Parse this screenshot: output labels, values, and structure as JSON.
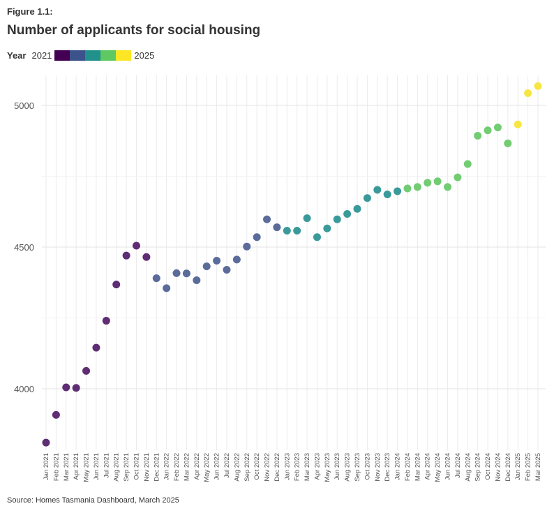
{
  "figure_label": "Figure 1.1:",
  "title": "Number of applicants for social housing",
  "legend": {
    "title": "Year",
    "start_label": "2021",
    "end_label": "2025",
    "colors": [
      "#440154",
      "#3b528b",
      "#21918c",
      "#5ec962",
      "#fde725"
    ]
  },
  "source": "Source: Homes Tasmania Dashboard, March 2025",
  "chart_data": {
    "type": "scatter",
    "xlabel": "",
    "ylabel": "",
    "ylim": [
      3800,
      5080
    ],
    "yticks": [
      4000,
      4500,
      5000
    ],
    "grid": true,
    "categories": [
      "Jan 2021",
      "Feb 2021",
      "Mar 2021",
      "Apr 2021",
      "May 2021",
      "Jun 2021",
      "Jul 2021",
      "Aug 2021",
      "Sep 2021",
      "Oct 2021",
      "Nov 2021",
      "Dec 2021",
      "Jan 2022",
      "Feb 2022",
      "Mar 2022",
      "Apr 2022",
      "May 2022",
      "Jun 2022",
      "Jul 2022",
      "Aug 2022",
      "Sep 2022",
      "Oct 2022",
      "Nov 2022",
      "Dec 2022",
      "Jan 2023",
      "Feb 2023",
      "Mar 2023",
      "Apr 2023",
      "May 2023",
      "Jun 2023",
      "Aug 2023",
      "Sep 2023",
      "Oct 2023",
      "Nov 2023",
      "Dec 2023",
      "Jan 2024",
      "Feb 2024",
      "Mar 2024",
      "Apr 2024",
      "May 2024",
      "Jun 2024",
      "Jul 2024",
      "Aug 2024",
      "Sep 2024",
      "Oct 2024",
      "Nov 2024",
      "Dec 2024",
      "Jan 2025",
      "Feb 2025",
      "Mar 2025"
    ],
    "values": [
      3810,
      3908,
      4005,
      4003,
      4063,
      4145,
      4240,
      4368,
      4470,
      4505,
      4465,
      4390,
      4355,
      4408,
      4407,
      4383,
      4432,
      4452,
      4420,
      4456,
      4502,
      4535,
      4598,
      4570,
      4558,
      4558,
      4602,
      4535,
      4566,
      4598,
      4617,
      4635,
      4673,
      4702,
      4686,
      4697,
      4707,
      4712,
      4727,
      4732,
      4712,
      4746,
      4793,
      4893,
      4912,
      4922,
      4866,
      4933,
      5043,
      5068
    ],
    "point_colors": [
      "#5e2d74",
      "#5e2d74",
      "#5e2d74",
      "#5e2d74",
      "#5e2d74",
      "#5e2d74",
      "#5e2d74",
      "#5e2d74",
      "#5e2d74",
      "#5e2d74",
      "#5e2d74",
      "#5b6b9a",
      "#5b6b9a",
      "#5b6b9a",
      "#5b6b9a",
      "#5b6b9a",
      "#5b6b9a",
      "#5b6b9a",
      "#5b6b9a",
      "#5b6b9a",
      "#5b6b9a",
      "#5b6b9a",
      "#5b6b9a",
      "#5b6b9a",
      "#3a9a9a",
      "#3a9a9a",
      "#3a9a9a",
      "#3a9a9a",
      "#3a9a9a",
      "#3a9a9a",
      "#3a9a9a",
      "#3a9a9a",
      "#3a9a9a",
      "#3a9a9a",
      "#3a9a9a",
      "#3a9a9a",
      "#72cc72",
      "#72cc72",
      "#72cc72",
      "#72cc72",
      "#72cc72",
      "#72cc72",
      "#72cc72",
      "#72cc72",
      "#72cc72",
      "#72cc72",
      "#72cc72",
      "#f7e642",
      "#f7e642",
      "#f7e642"
    ]
  }
}
